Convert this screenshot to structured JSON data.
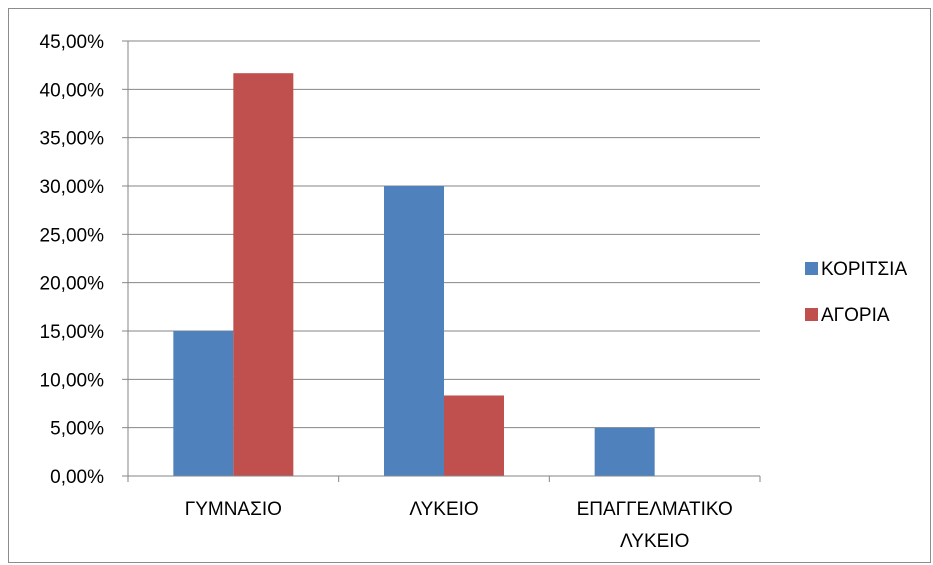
{
  "chart_data": {
    "type": "bar",
    "categories": [
      [
        "ΓΥΜΝΑΣΙΟ"
      ],
      [
        "ΛΥΚΕΙΟ"
      ],
      [
        "ΕΠΑΓΓΕΛΜΑΤΙΚΟ",
        "ΛΥΚΕΙΟ"
      ]
    ],
    "series": [
      {
        "name": "ΚΟΡΙΤΣΙΑ",
        "color": "#4f81bd",
        "values": [
          15.0,
          30.0,
          5.0
        ]
      },
      {
        "name": "ΑΓΟΡΙΑ",
        "color": "#c0504d",
        "values": [
          41.67,
          8.33,
          0.0
        ]
      }
    ],
    "ylim": [
      0,
      45
    ],
    "yticks": [
      0,
      5,
      10,
      15,
      20,
      25,
      30,
      35,
      40,
      45
    ],
    "ytick_labels": [
      "0,00%",
      "5,00%",
      "10,00%",
      "15,00%",
      "20,00%",
      "25,00%",
      "30,00%",
      "35,00%",
      "40,00%",
      "45,00%"
    ],
    "grid": true,
    "legend_position": "right"
  }
}
